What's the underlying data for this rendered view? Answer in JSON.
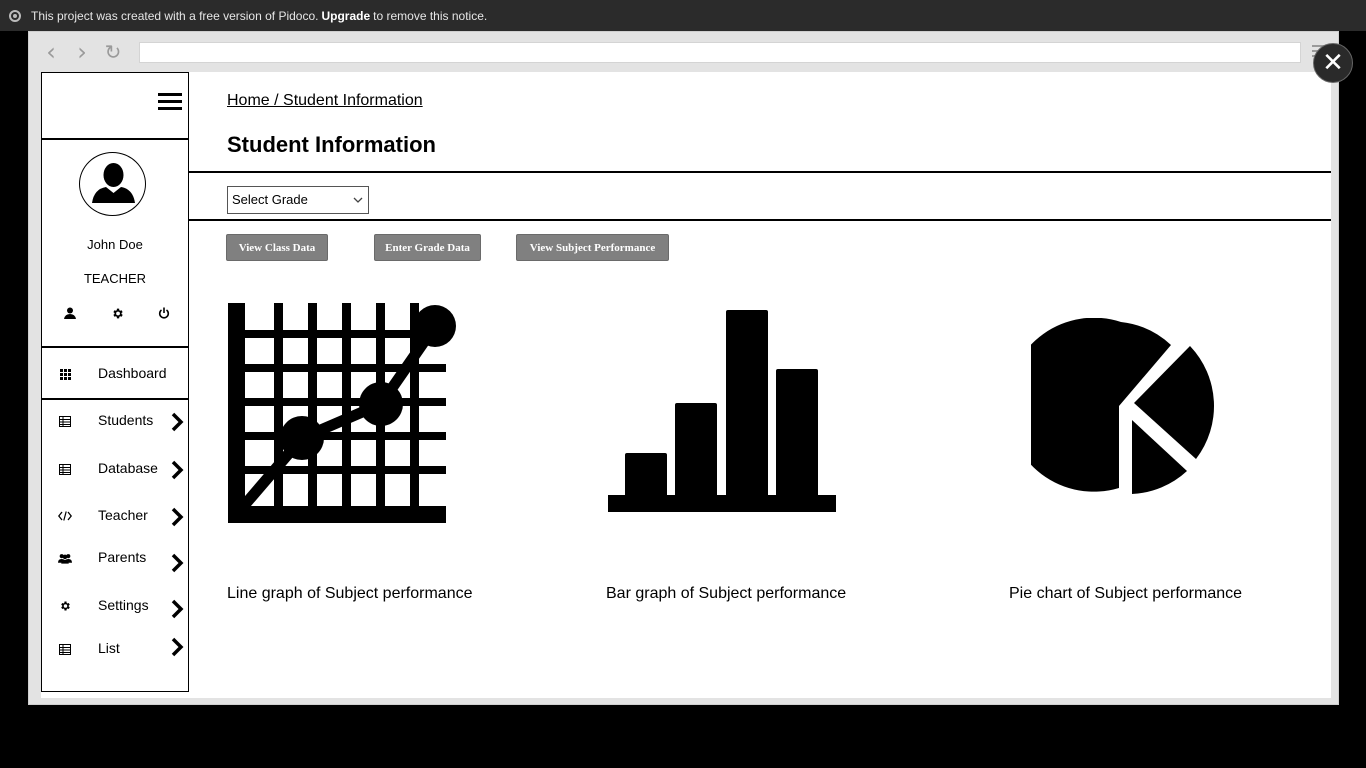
{
  "notice": {
    "text_before": "This project was created with a free version of Pidoco.",
    "link": "Upgrade",
    "text_after": "to remove this notice."
  },
  "browser": {
    "address": "",
    "close_label": "✕"
  },
  "sidebar": {
    "user_name": "John Doe",
    "user_role": "TEACHER",
    "items": [
      {
        "label": "Dashboard",
        "icon": "grid-icon"
      },
      {
        "label": "Students",
        "icon": "table-icon"
      },
      {
        "label": "Database",
        "icon": "table-icon"
      },
      {
        "label": "Teacher",
        "icon": "code-icon"
      },
      {
        "label": "Parents",
        "icon": "users-icon"
      },
      {
        "label": "Settings",
        "icon": "gear-icon"
      },
      {
        "label": "List",
        "icon": "table-icon"
      }
    ]
  },
  "main": {
    "breadcrumb": "Home / Student Information",
    "title": "Student Information",
    "grade_select": {
      "selected": "Select Grade"
    },
    "buttons": {
      "view_class": "View Class Data",
      "enter_grade": "Enter Grade Data",
      "view_subject": "View Subject Performance"
    },
    "charts": [
      {
        "caption": "Line graph of Subject performance",
        "icon": "line-graph-icon"
      },
      {
        "caption": "Bar graph of Subject performance",
        "icon": "bar-graph-icon"
      },
      {
        "caption": "Pie chart of Subject performance",
        "icon": "pie-chart-icon"
      }
    ]
  },
  "colors": {
    "notice_bg": "#2b2b2b",
    "button_bg": "#808080",
    "ink": "#000000"
  }
}
